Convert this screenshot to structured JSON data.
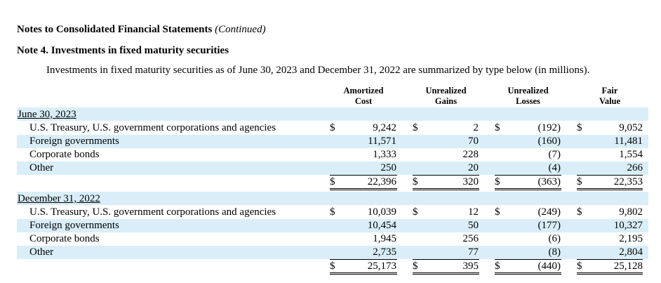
{
  "header": {
    "title": "Notes to Consolidated Financial Statements",
    "continued": "(Continued)",
    "note_title": "Note 4. Investments in fixed maturity securities",
    "intro": "Investments in fixed maturity securities as of June 30, 2023 and December 31, 2022 are summarized by type below (in millions)."
  },
  "columns": [
    {
      "line1": "Amortized",
      "line2": "Cost"
    },
    {
      "line1": "Unrealized",
      "line2": "Gains"
    },
    {
      "line1": "Unrealized",
      "line2": "Losses"
    },
    {
      "line1": "Fair",
      "line2": "Value"
    }
  ],
  "currency": "$",
  "sections": [
    {
      "label": "June 30, 2023",
      "rows": [
        {
          "label": "U.S. Treasury, U.S. government corporations and agencies",
          "values": [
            "9,242",
            "2",
            "(192)",
            "9,052"
          ]
        },
        {
          "label": "Foreign governments",
          "values": [
            "11,571",
            "70",
            "(160)",
            "11,481"
          ]
        },
        {
          "label": "Corporate bonds",
          "values": [
            "1,333",
            "228",
            "(7)",
            "1,554"
          ]
        },
        {
          "label": "Other",
          "values": [
            "250",
            "20",
            "(4)",
            "266"
          ]
        }
      ],
      "total": [
        "22,396",
        "320",
        "(363)",
        "22,353"
      ]
    },
    {
      "label": "December 31, 2022",
      "rows": [
        {
          "label": "U.S. Treasury, U.S. government corporations and agencies",
          "values": [
            "10,039",
            "12",
            "(249)",
            "9,802"
          ]
        },
        {
          "label": "Foreign governments",
          "values": [
            "10,454",
            "50",
            "(177)",
            "10,327"
          ]
        },
        {
          "label": "Corporate bonds",
          "values": [
            "1,945",
            "256",
            "(6)",
            "2,195"
          ]
        },
        {
          "label": "Other",
          "values": [
            "2,735",
            "77",
            "(8)",
            "2,804"
          ]
        }
      ],
      "total": [
        "25,173",
        "395",
        "(440)",
        "25,128"
      ]
    }
  ]
}
